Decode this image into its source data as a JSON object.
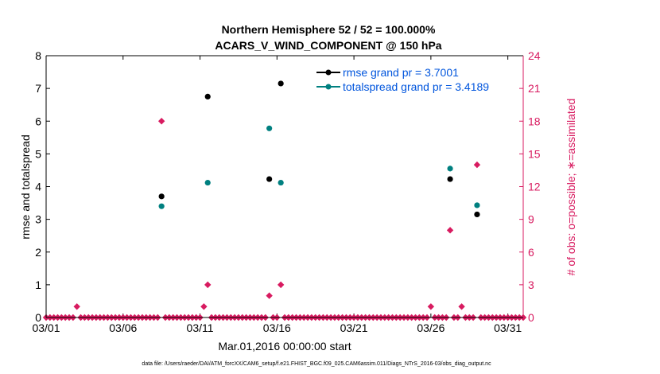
{
  "chart_data": {
    "type": "scatter",
    "title": "Northern Hemisphere 52 / 52 = 100.000%",
    "subtitle": "ACARS_V_WIND_COMPONENT @ 150 hPa",
    "xlabel": "Mar.01,2016 00:00:00 start",
    "ylabel": "rmse and totalspread",
    "ylabel_right": "# of obs: o=possible; ∗=assimilated",
    "footnote": "data file: /Users/raeder/DAI/ATM_forcXX/CAM6_setup/f.e21.FHIST_BGC.f09_025.CAM6assim.011/Diags_NTrS_2016-03/obs_diag_output.nc",
    "xlim": [
      1,
      32
    ],
    "ylim": [
      0,
      8
    ],
    "ylim_right": [
      0,
      24
    ],
    "x_ticks": [
      1,
      6,
      11,
      16,
      21,
      26,
      31
    ],
    "x_tick_labels": [
      "03/01",
      "03/06",
      "03/11",
      "03/16",
      "03/21",
      "03/26",
      "03/31"
    ],
    "y_ticks": [
      "0",
      "1",
      "2",
      "3",
      "4",
      "5",
      "6",
      "7",
      "8"
    ],
    "y_ticks_right": [
      "0",
      "3",
      "6",
      "9",
      "12",
      "15",
      "18",
      "21",
      "24"
    ],
    "colors": {
      "rmse": "#000000",
      "totalspread": "#008080",
      "obs": "#d81b60",
      "legend_text": "#0055dd",
      "axis_right": "#d81b60"
    },
    "series": [
      {
        "name": "rmse grand pr = 3.7001",
        "axis": "left",
        "x": [
          8.5,
          11.5,
          15.5,
          16.25,
          27.25,
          29
        ],
        "values": [
          3.7,
          6.75,
          4.23,
          7.15,
          4.23,
          3.15
        ]
      },
      {
        "name": "totalspread grand pr = 3.4189",
        "axis": "left",
        "x": [
          8.5,
          11.5,
          15.5,
          16.25,
          27.25,
          29
        ],
        "values": [
          3.4,
          4.12,
          5.78,
          4.12,
          4.55,
          3.43
        ]
      },
      {
        "name": "obs possible / assimilated",
        "axis": "right",
        "x": [
          1,
          1.25,
          1.5,
          1.75,
          2,
          2.25,
          2.5,
          2.75,
          3,
          3.25,
          3.5,
          3.75,
          4,
          4.25,
          4.5,
          4.75,
          5,
          5.25,
          5.5,
          5.75,
          6,
          6.25,
          6.5,
          6.75,
          7,
          7.25,
          7.5,
          7.75,
          8,
          8.25,
          8.5,
          8.75,
          9,
          9.25,
          9.5,
          9.75,
          10,
          10.25,
          10.5,
          10.75,
          11,
          11.25,
          11.5,
          11.75,
          12,
          12.25,
          12.5,
          12.75,
          13,
          13.25,
          13.5,
          13.75,
          14,
          14.25,
          14.5,
          14.75,
          15,
          15.25,
          15.5,
          15.75,
          16,
          16.25,
          16.5,
          16.75,
          17,
          17.25,
          17.5,
          17.75,
          18,
          18.25,
          18.5,
          18.75,
          19,
          19.25,
          19.5,
          19.75,
          20,
          20.25,
          20.5,
          20.75,
          21,
          21.25,
          21.5,
          21.75,
          22,
          22.25,
          22.5,
          22.75,
          23,
          23.25,
          23.5,
          23.75,
          24,
          24.25,
          24.5,
          24.75,
          25,
          25.25,
          25.5,
          25.75,
          26,
          26.25,
          26.5,
          26.75,
          27,
          27.25,
          27.5,
          27.75,
          28,
          28.25,
          28.5,
          28.75,
          29,
          29.25,
          29.5,
          29.75,
          30,
          30.25,
          30.5,
          30.75,
          31,
          31.25,
          31.5,
          31.75,
          32
        ],
        "values": [
          0,
          0,
          0,
          0,
          0,
          0,
          0,
          0,
          1,
          0,
          0,
          0,
          0,
          0,
          0,
          0,
          0,
          0,
          0,
          0,
          0,
          0,
          0,
          0,
          0,
          0,
          0,
          0,
          0,
          0,
          18,
          0,
          0,
          0,
          0,
          0,
          0,
          0,
          0,
          0,
          0,
          1,
          3,
          0,
          0,
          0,
          0,
          0,
          0,
          0,
          0,
          0,
          0,
          0,
          0,
          0,
          0,
          0,
          2,
          0,
          0,
          3,
          0,
          0,
          0,
          0,
          0,
          0,
          0,
          0,
          0,
          0,
          0,
          0,
          0,
          0,
          0,
          0,
          0,
          0,
          0,
          0,
          0,
          0,
          0,
          0,
          0,
          0,
          0,
          0,
          0,
          0,
          0,
          0,
          0,
          0,
          0,
          0,
          0,
          0,
          1,
          0,
          0,
          0,
          0,
          8,
          0,
          0,
          1,
          0,
          0,
          0,
          14,
          0,
          0,
          0,
          0,
          0,
          0,
          0,
          0,
          0,
          0,
          0,
          0
        ]
      }
    ],
    "legend_position": "top-right",
    "grid": false
  }
}
